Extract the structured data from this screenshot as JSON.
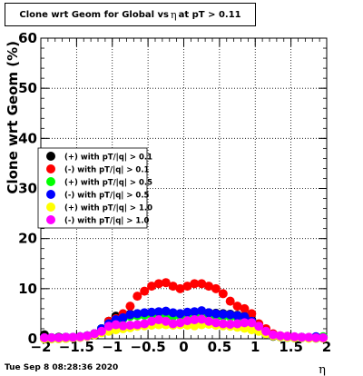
{
  "title": {
    "prefix": "Clone wrt Geom for Global vs",
    "symbol": "η",
    "suffix": "at pT > 0.11"
  },
  "timestamp": "Tue Sep  8 08:28:36 2020",
  "chart_data": {
    "type": "scatter",
    "xlabel": "η",
    "ylabel": "Clone wrt Geom (%)",
    "xlim": [
      -2,
      2
    ],
    "ylim": [
      0,
      60
    ],
    "x_ticks": [
      "−2",
      "−1.5",
      "−1",
      "−0.5",
      "0",
      "0.5",
      "1",
      "1.5",
      "2"
    ],
    "y_ticks": [
      "0",
      "10",
      "20",
      "30",
      "40",
      "50",
      "60"
    ],
    "grid": true,
    "legend_position": "left",
    "x": [
      -1.95,
      -1.85,
      -1.75,
      -1.65,
      -1.55,
      -1.45,
      -1.35,
      -1.25,
      -1.15,
      -1.05,
      -0.95,
      -0.85,
      -0.75,
      -0.65,
      -0.55,
      -0.45,
      -0.35,
      -0.25,
      -0.15,
      -0.05,
      0.05,
      0.15,
      0.25,
      0.35,
      0.45,
      0.55,
      0.65,
      0.75,
      0.85,
      0.95,
      1.05,
      1.15,
      1.25,
      1.35,
      1.45,
      1.55,
      1.65,
      1.75,
      1.85,
      1.95
    ],
    "series": [
      {
        "name": "(+) with pT/|q| > 0.1",
        "color": "#000000",
        "values": [
          0.8,
          0.2,
          0.3,
          0.3,
          0.2,
          0.4,
          0.6,
          1.0,
          2.0,
          3.5,
          4.5,
          4.7,
          4.9,
          5.0,
          5.1,
          5.2,
          5.3,
          5.2,
          5.1,
          5.0,
          5.1,
          5.2,
          5.3,
          5.2,
          5.1,
          5.0,
          4.9,
          4.7,
          4.5,
          3.8,
          2.0,
          1.0,
          0.5,
          0.4,
          0.3,
          0.2,
          0.3,
          0.2,
          0.2,
          0.3
        ]
      },
      {
        "name": "(-) with pT/|q| > 0.1",
        "color": "#ff0000",
        "values": [
          0.1,
          0.1,
          0.1,
          0.1,
          0.2,
          0.3,
          0.5,
          1.0,
          2.0,
          3.5,
          4.0,
          5.0,
          6.5,
          8.5,
          9.5,
          10.5,
          11.0,
          11.2,
          10.5,
          10.0,
          10.5,
          11.0,
          11.0,
          10.5,
          10.0,
          9.0,
          7.5,
          6.5,
          6.0,
          5.0,
          3.0,
          2.0,
          1.0,
          0.6,
          0.5,
          0.3,
          0.3,
          0.2,
          0.2,
          0.2
        ]
      },
      {
        "name": "(+) with pT/|q| > 0.5",
        "color": "#00ff00",
        "values": [
          0.0,
          0.0,
          0.0,
          0.1,
          0.2,
          0.4,
          0.6,
          1.0,
          2.0,
          3.0,
          3.5,
          4.0,
          4.5,
          4.6,
          4.7,
          4.8,
          4.7,
          4.6,
          4.5,
          4.6,
          4.5,
          4.7,
          4.8,
          4.7,
          4.6,
          4.5,
          4.4,
          4.3,
          4.1,
          3.2,
          2.0,
          1.0,
          0.6,
          0.4,
          0.3,
          0.2,
          0.2,
          0.2,
          0.1,
          0.4
        ]
      },
      {
        "name": "(-) with pT/|q| > 0.5",
        "color": "#0000ff",
        "values": [
          0.2,
          0.2,
          0.2,
          0.3,
          0.3,
          0.4,
          0.6,
          1.0,
          2.0,
          3.0,
          3.8,
          4.2,
          4.8,
          5.0,
          5.2,
          5.3,
          5.4,
          5.5,
          5.2,
          5.0,
          5.3,
          5.4,
          5.6,
          5.2,
          5.0,
          4.9,
          4.8,
          4.6,
          4.4,
          3.5,
          2.0,
          1.0,
          0.6,
          0.5,
          0.4,
          0.3,
          0.3,
          0.2,
          0.4,
          0.2
        ]
      },
      {
        "name": "(+) with pT/|q| > 1.0",
        "color": "#ffff00",
        "values": [
          0.0,
          0.0,
          0.0,
          0.1,
          0.2,
          0.3,
          0.5,
          0.8,
          1.2,
          1.5,
          1.8,
          2.0,
          2.2,
          2.5,
          2.6,
          2.7,
          2.8,
          2.8,
          2.7,
          2.8,
          2.7,
          2.6,
          2.8,
          2.9,
          2.7,
          2.6,
          2.5,
          2.3,
          2.1,
          1.8,
          1.5,
          1.0,
          0.6,
          0.4,
          0.3,
          0.2,
          0.2,
          0.1,
          0.1,
          0.1
        ]
      },
      {
        "name": "(-) with pT/|q| > 1.0",
        "color": "#ff00ff",
        "values": [
          0.2,
          0.2,
          0.2,
          0.3,
          0.3,
          0.4,
          0.6,
          1.0,
          1.5,
          2.5,
          2.8,
          2.6,
          2.7,
          2.8,
          3.0,
          3.5,
          3.8,
          3.5,
          3.0,
          3.2,
          3.6,
          3.8,
          3.9,
          3.5,
          3.2,
          3.0,
          2.9,
          3.0,
          3.2,
          3.2,
          2.5,
          1.5,
          0.8,
          0.6,
          0.5,
          0.4,
          0.3,
          0.3,
          0.2,
          0.2
        ]
      }
    ]
  }
}
